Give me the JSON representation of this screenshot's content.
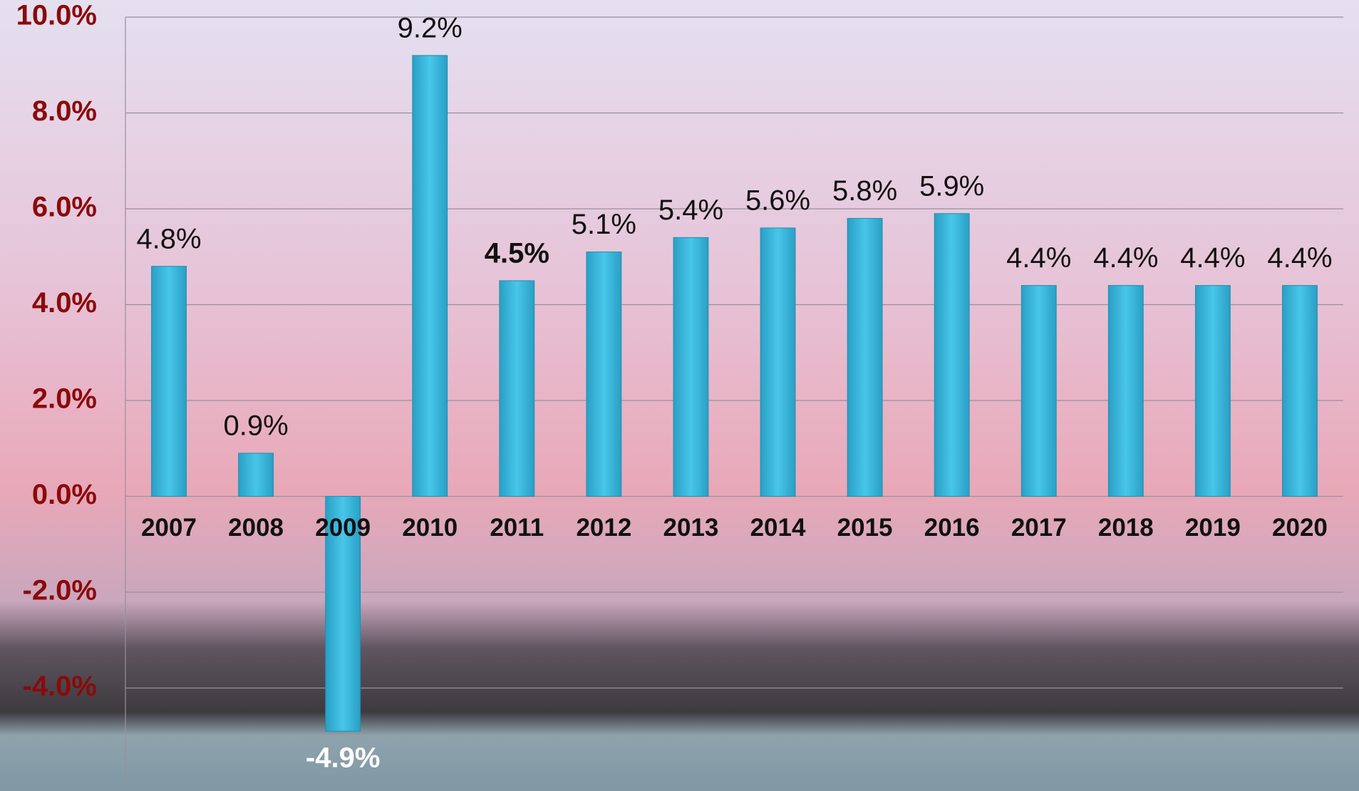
{
  "chart_data": {
    "type": "bar",
    "categories": [
      "2007",
      "2008",
      "2009",
      "2010",
      "2011",
      "2012",
      "2013",
      "2014",
      "2015",
      "2016",
      "2017",
      "2018",
      "2019",
      "2020"
    ],
    "values": [
      4.8,
      0.9,
      -4.9,
      9.2,
      4.5,
      5.1,
      5.4,
      5.6,
      5.8,
      5.9,
      4.4,
      4.4,
      4.4,
      4.4
    ],
    "value_labels": [
      "4.8%",
      "0.9%",
      "-4.9%",
      "9.2%",
      "4.5%",
      "5.1%",
      "5.4%",
      "5.6%",
      "5.8%",
      "5.9%",
      "4.4%",
      "4.4%",
      "4.4%",
      "4.4%"
    ],
    "color": "#3bb8dc",
    "ylim": [
      -6,
      10
    ],
    "yticks": [
      {
        "value": -4,
        "label": "-4.0%"
      },
      {
        "value": -2,
        "label": "-2.0%"
      },
      {
        "value": 0,
        "label": "0.0%"
      },
      {
        "value": 2,
        "label": "2.0%"
      },
      {
        "value": 4,
        "label": "4.0%"
      },
      {
        "value": 6,
        "label": "6.0%"
      },
      {
        "value": 8,
        "label": "8.0%"
      },
      {
        "value": 10,
        "label": "10.0%"
      }
    ],
    "grid": true
  }
}
